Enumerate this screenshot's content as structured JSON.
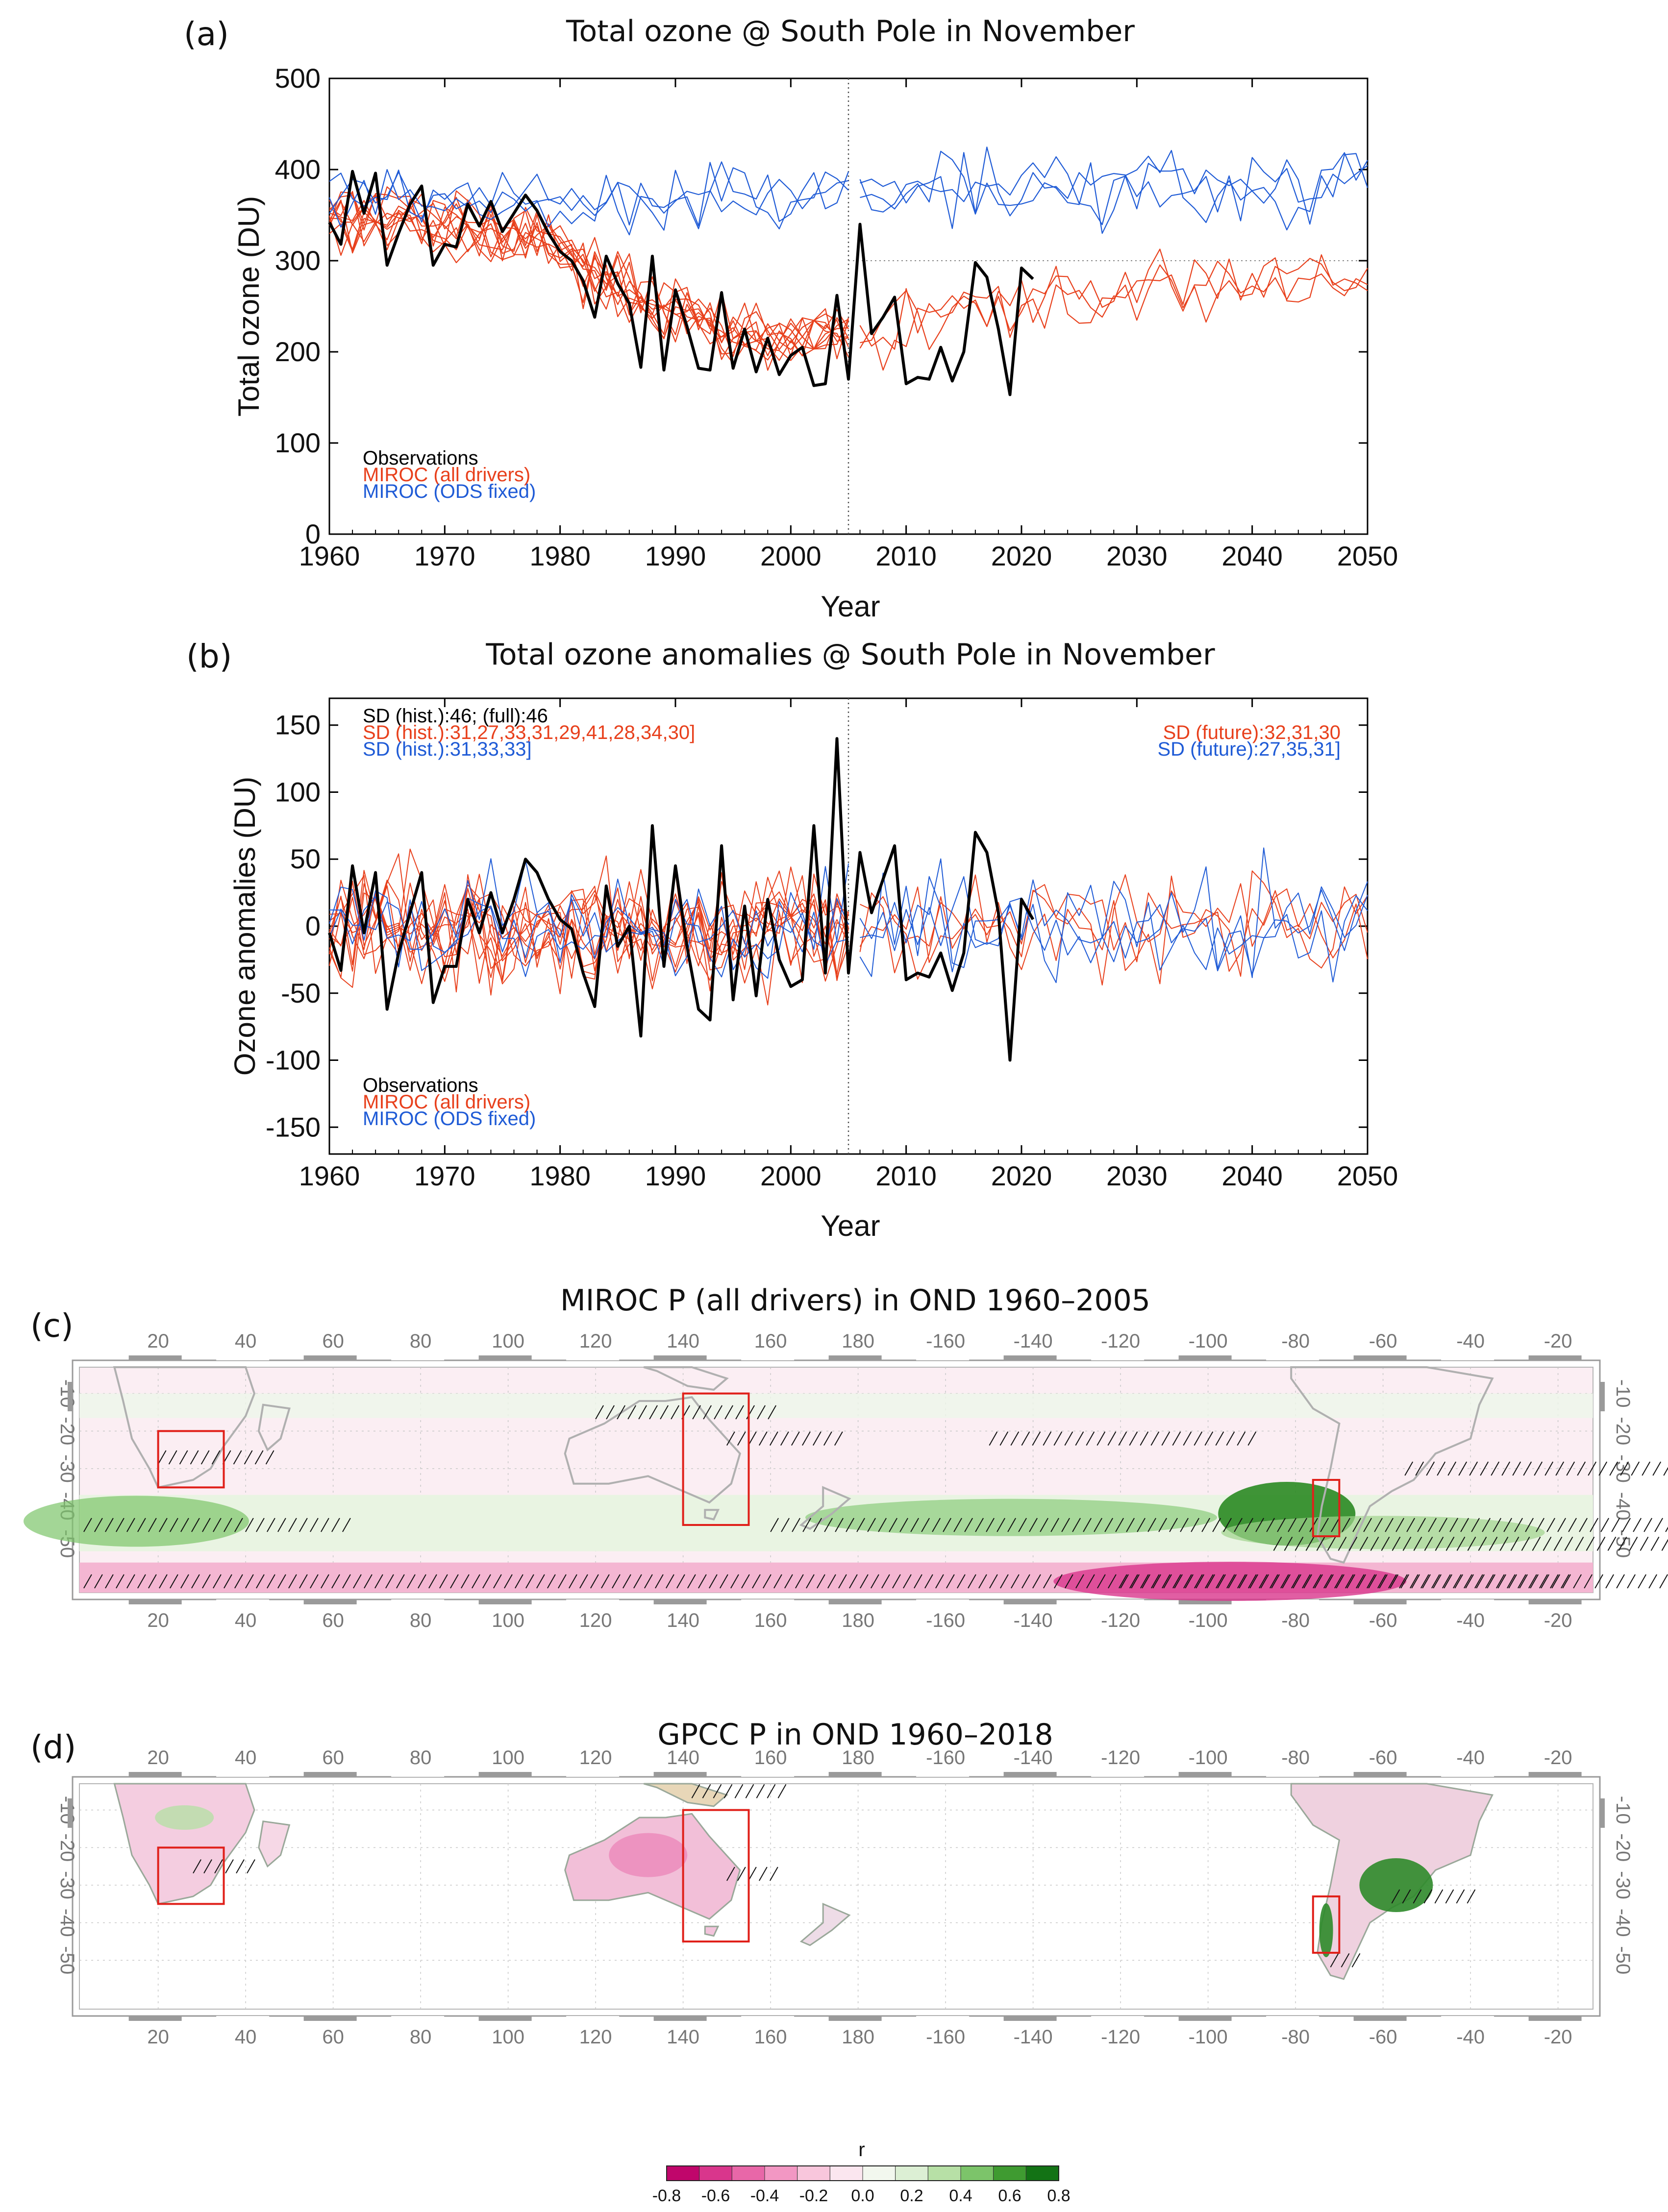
{
  "chart_data": [
    {
      "id": "a",
      "type": "line",
      "panel_label": "(a)",
      "title": "Total ozone @ South Pole in November",
      "xlabel": "Year",
      "ylabel": "Total ozone (DU)",
      "xlim": [
        1960,
        2050
      ],
      "ylim": [
        0,
        500
      ],
      "xticks": [
        1960,
        1970,
        1980,
        1990,
        2000,
        2010,
        2020,
        2030,
        2040,
        2050
      ],
      "yticks": [
        0,
        100,
        200,
        300,
        400,
        500
      ],
      "vline_x": 2005,
      "hline_y": 300,
      "legend": [
        {
          "label": "Observations",
          "color": "#000000"
        },
        {
          "label": "MIROC (all drivers)",
          "color": "#e8401c"
        },
        {
          "label": "MIROC (ODS fixed)",
          "color": "#1f5bd6"
        }
      ],
      "series": [
        {
          "name": "Observations",
          "color": "#000000",
          "x_start": 1960,
          "values": [
            342,
            318,
            398,
            352,
            396,
            295,
            330,
            362,
            382,
            295,
            318,
            315,
            362,
            338,
            365,
            332,
            352,
            372,
            355,
            330,
            310,
            300,
            278,
            238,
            305,
            275,
            253,
            183,
            305,
            180,
            268,
            228,
            182,
            180,
            265,
            182,
            225,
            178,
            215,
            175,
            196,
            205,
            163,
            165,
            262,
            170,
            340,
            220,
            238,
            260,
            165,
            172,
            170,
            205,
            168,
            200,
            298,
            282,
            225,
            153,
            292,
            280
          ]
        },
        {
          "name": "MIROC (all drivers) ensemble mean",
          "color": "#e8401c",
          "x": [
            1960,
            1965,
            1970,
            1975,
            1980,
            1985,
            1990,
            1995,
            2000,
            2005,
            2010,
            2015,
            2020,
            2025,
            2030,
            2035,
            2040,
            2045,
            2050
          ],
          "values": [
            355,
            345,
            340,
            330,
            310,
            275,
            245,
            222,
            215,
            220,
            230,
            240,
            248,
            255,
            265,
            272,
            280,
            285,
            290
          ]
        },
        {
          "name": "MIROC (ODS fixed) ensemble mean",
          "color": "#1f5bd6",
          "x": [
            1960,
            1970,
            1980,
            1990,
            2000,
            2010,
            2020,
            2030,
            2040,
            2050
          ],
          "values": [
            372,
            370,
            368,
            370,
            368,
            375,
            380,
            382,
            383,
            385
          ]
        }
      ]
    },
    {
      "id": "b",
      "type": "line",
      "panel_label": "(b)",
      "title": "Total ozone anomalies @ South Pole in November",
      "xlabel": "Year",
      "ylabel": "Ozone anomalies (DU)",
      "xlim": [
        1960,
        2050
      ],
      "ylim": [
        -170,
        170
      ],
      "xticks": [
        1960,
        1970,
        1980,
        1990,
        2000,
        2010,
        2020,
        2030,
        2040,
        2050
      ],
      "yticks": [
        -150,
        -100,
        -50,
        0,
        50,
        100,
        150
      ],
      "vline_x": 2005,
      "annotations_left": [
        {
          "text": "SD (hist.):46; (full):46",
          "color": "#000000"
        },
        {
          "text": "SD (hist.):31,27,33,31,29,41,28,34,30]",
          "color": "#e8401c"
        },
        {
          "text": "SD (hist.):31,33,33]",
          "color": "#1f5bd6"
        }
      ],
      "annotations_right": [
        {
          "text": "SD (future):32,31,30",
          "color": "#e8401c"
        },
        {
          "text": "SD (future):27,35,31]",
          "color": "#1f5bd6"
        }
      ],
      "legend": [
        {
          "label": "Observations",
          "color": "#000000"
        },
        {
          "label": "MIROC (all drivers)",
          "color": "#e8401c"
        },
        {
          "label": "MIROC (ODS fixed)",
          "color": "#1f5bd6"
        }
      ],
      "series": [
        {
          "name": "Observations",
          "color": "#000000",
          "x_start": 1960,
          "values": [
            -5,
            -33,
            45,
            -5,
            40,
            -62,
            -20,
            10,
            40,
            -57,
            -30,
            -30,
            20,
            -5,
            25,
            -5,
            20,
            50,
            40,
            20,
            5,
            -2,
            -35,
            -60,
            30,
            -15,
            0,
            -82,
            75,
            -30,
            45,
            -15,
            -62,
            -70,
            60,
            -55,
            15,
            -52,
            20,
            -25,
            -45,
            -40,
            75,
            -35,
            140,
            -35,
            55,
            10,
            35,
            60,
            -40,
            -35,
            -38,
            -20,
            -48,
            -20,
            70,
            55,
            10,
            -100,
            20,
            5
          ]
        }
      ]
    },
    {
      "id": "c",
      "type": "heatmap",
      "panel_label": "(c)",
      "title": "MIROC P (all drivers) in OND 1960–2005",
      "lon_ticks": [
        "20",
        "40",
        "60",
        "80",
        "100",
        "120",
        "140",
        "160",
        "180",
        "-160",
        "-140",
        "-120",
        "-100",
        "-80",
        "-60",
        "-40",
        "-20"
      ],
      "lat_ticks": [
        "-10",
        "-20",
        "-30",
        "-40",
        "-50"
      ],
      "boxes": [
        {
          "region": "Southern Africa",
          "lon": [
            20,
            35
          ],
          "lat": [
            -35,
            -20
          ]
        },
        {
          "region": "Eastern Australia",
          "lon": [
            140,
            155
          ],
          "lat": [
            -45,
            -10
          ]
        },
        {
          "region": "Southern South America",
          "lon": [
            -76,
            -70
          ],
          "lat": [
            -48,
            -33
          ]
        }
      ]
    },
    {
      "id": "d",
      "type": "heatmap",
      "panel_label": "(d)",
      "title": "GPCC P in OND 1960–2018",
      "lon_ticks": [
        "20",
        "40",
        "60",
        "80",
        "100",
        "120",
        "140",
        "160",
        "180",
        "-160",
        "-140",
        "-120",
        "-100",
        "-80",
        "-60",
        "-40",
        "-20"
      ],
      "lat_ticks": [
        "-10",
        "-20",
        "-30",
        "-40",
        "-50"
      ],
      "boxes": [
        {
          "region": "Southern Africa",
          "lon": [
            20,
            35
          ],
          "lat": [
            -35,
            -20
          ]
        },
        {
          "region": "Eastern Australia",
          "lon": [
            140,
            155
          ],
          "lat": [
            -45,
            -10
          ]
        },
        {
          "region": "Southern South America",
          "lon": [
            -76,
            -70
          ],
          "lat": [
            -48,
            -33
          ]
        }
      ]
    }
  ],
  "colorbar": {
    "label": "r",
    "ticks": [
      "-0.8",
      "-0.6",
      "-0.4",
      "-0.2",
      "0.0",
      "0.2",
      "0.4",
      "0.6",
      "0.8"
    ],
    "colors": [
      "#c0066b",
      "#d9368c",
      "#e867a8",
      "#f297c3",
      "#f8c6dc",
      "#fbe6ef",
      "#f2f7ee",
      "#dcefd4",
      "#b7e0a6",
      "#7cc46a",
      "#3f9b31",
      "#137315"
    ]
  }
}
